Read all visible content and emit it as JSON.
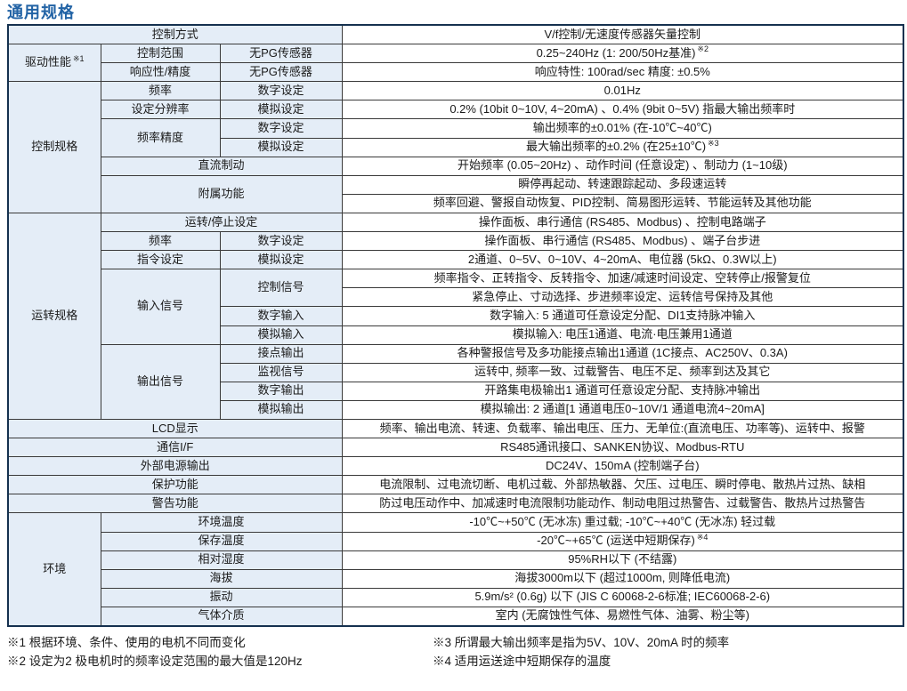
{
  "page_title": "通用规格",
  "colors": {
    "title_blue": "#2263a5",
    "label_cell_bg": "#e4edf7",
    "heavy_border": "#15314f",
    "thin_border": "#3a3a3a"
  },
  "table": {
    "rows": [
      [
        {
          "text": "控制方式",
          "type": "label",
          "colspan": 3
        },
        {
          "text": "V/f控制/无速度传感器矢量控制",
          "type": "value"
        }
      ],
      [
        {
          "text": "驱动性能",
          "sup": "※1",
          "type": "label",
          "rowspan": 2
        },
        {
          "text": "控制范围",
          "type": "label"
        },
        {
          "text": "无PG传感器",
          "type": "label"
        },
        {
          "text": "0.25~240Hz (1: 200/50Hz基准)",
          "sup": "※2",
          "type": "value"
        }
      ],
      [
        {
          "text": "响应性/精度",
          "type": "label"
        },
        {
          "text": "无PG传感器",
          "type": "label"
        },
        {
          "text": "响应特性: 100rad/sec 精度: ±0.5%",
          "type": "value"
        }
      ],
      [
        {
          "text": "控制规格",
          "type": "label",
          "rowspan": 7
        },
        {
          "text": "频率",
          "type": "label"
        },
        {
          "text": "数字设定",
          "type": "label"
        },
        {
          "text": "0.01Hz",
          "type": "value"
        }
      ],
      [
        {
          "text": "设定分辨率",
          "type": "label"
        },
        {
          "text": "模拟设定",
          "type": "label"
        },
        {
          "text": "0.2% (10bit 0~10V, 4~20mA) 、0.4% (9bit 0~5V) 指最大输出频率时",
          "type": "value"
        }
      ],
      [
        {
          "text": "频率精度",
          "type": "label",
          "rowspan": 2
        },
        {
          "text": "数字设定",
          "type": "label"
        },
        {
          "text": "输出频率的±0.01% (在-10℃~40℃)",
          "type": "value"
        }
      ],
      [
        {
          "text": "模拟设定",
          "type": "label"
        },
        {
          "text": "最大输出频率的±0.2% (在25±10℃)",
          "sup": "※3",
          "type": "value"
        }
      ],
      [
        {
          "text": "直流制动",
          "type": "label",
          "colspan": 2
        },
        {
          "text": "开始频率 (0.05~20Hz) 、动作时间 (任意设定) 、制动力 (1~10级)",
          "type": "value"
        }
      ],
      [
        {
          "text": "附属功能",
          "type": "label",
          "colspan": 2,
          "rowspan": 2
        },
        {
          "text": "瞬停再起动、转速跟踪起动、多段速运转",
          "type": "value"
        }
      ],
      [
        {
          "text": "频率回避、警报自动恢复、PID控制、简易图形运转、节能运转及其他功能",
          "type": "value"
        }
      ],
      [
        {
          "text": "运转规格",
          "type": "label",
          "rowspan": 11
        },
        {
          "text": "运转/停止设定",
          "type": "label",
          "colspan": 2
        },
        {
          "text": "操作面板、串行通信 (RS485、Modbus) 、控制电路端子",
          "type": "value"
        }
      ],
      [
        {
          "text": "频率",
          "type": "label"
        },
        {
          "text": "数字设定",
          "type": "label"
        },
        {
          "text": "操作面板、串行通信 (RS485、Modbus) 、端子台步进",
          "type": "value"
        }
      ],
      [
        {
          "text": "指令设定",
          "type": "label"
        },
        {
          "text": "模拟设定",
          "type": "label"
        },
        {
          "text": "2通道、0~5V、0~10V、4~20mA、电位器 (5kΩ、0.3W以上)",
          "type": "value"
        }
      ],
      [
        {
          "text": "输入信号",
          "type": "label",
          "rowspan": 4
        },
        {
          "text": "控制信号",
          "type": "label",
          "rowspan": 2
        },
        {
          "text": "频率指令、正转指令、反转指令、加速/减速时间设定、空转停止/报警复位",
          "type": "value"
        }
      ],
      [
        {
          "text": "紧急停止、寸动选择、步进频率设定、运转信号保持及其他",
          "type": "value"
        }
      ],
      [
        {
          "text": "数字输入",
          "type": "label"
        },
        {
          "text": "数字输入: 5 通道可任意设定分配、DI1支持脉冲输入",
          "type": "value"
        }
      ],
      [
        {
          "text": "模拟输入",
          "type": "label"
        },
        {
          "text": "模拟输入: 电压1通道、电流·电压兼用1通道",
          "type": "value"
        }
      ],
      [
        {
          "text": "输出信号",
          "type": "label",
          "rowspan": 4
        },
        {
          "text": "接点输出",
          "type": "label"
        },
        {
          "text": "各种警报信号及多功能接点输出1通道 (1C接点、AC250V、0.3A)",
          "type": "value"
        }
      ],
      [
        {
          "text": "监视信号",
          "type": "label"
        },
        {
          "text": "运转中, 频率一致、过载警告、电压不足、频率到达及其它",
          "type": "value"
        }
      ],
      [
        {
          "text": "数字输出",
          "type": "label"
        },
        {
          "text": "开路集电极输出1 通道可任意设定分配、支持脉冲输出",
          "type": "value"
        }
      ],
      [
        {
          "text": "模拟输出",
          "type": "label"
        },
        {
          "text": "模拟输出: 2 通道[1 通道电压0~10V/1 通道电流4~20mA]",
          "type": "value"
        }
      ],
      [
        {
          "text": "LCD显示",
          "type": "label",
          "colspan": 3
        },
        {
          "text": "频率、输出电流、转速、负载率、输出电压、压力、无单位:(直流电压、功率等)、运转中、报警",
          "type": "value"
        }
      ],
      [
        {
          "text": "通信I/F",
          "type": "label",
          "colspan": 3
        },
        {
          "text": "RS485通讯接口、SANKEN协议、Modbus-RTU",
          "type": "value"
        }
      ],
      [
        {
          "text": "外部电源输出",
          "type": "label",
          "colspan": 3
        },
        {
          "text": "DC24V、150mA (控制端子台)",
          "type": "value"
        }
      ],
      [
        {
          "text": "保护功能",
          "type": "label",
          "colspan": 3
        },
        {
          "text": "电流限制、过电流切断、电机过载、外部热敏器、欠压、过电压、瞬时停电、散热片过热、缺相",
          "type": "value"
        }
      ],
      [
        {
          "text": "警告功能",
          "type": "label",
          "colspan": 3
        },
        {
          "text": "防过电压动作中、加减速时电流限制功能动作、制动电阻过热警告、过载警告、散热片过热警告",
          "type": "value"
        }
      ],
      [
        {
          "text": "环境",
          "type": "label",
          "rowspan": 6
        },
        {
          "text": "环境温度",
          "type": "label",
          "colspan": 2
        },
        {
          "text": "-10℃~+50℃ (无冰冻) 重过载; -10℃~+40℃ (无冰冻) 轻过载",
          "type": "value"
        }
      ],
      [
        {
          "text": "保存温度",
          "type": "label",
          "colspan": 2
        },
        {
          "text": "-20℃~+65℃ (运送中短期保存)",
          "sup": "※4",
          "type": "value"
        }
      ],
      [
        {
          "text": "相对湿度",
          "type": "label",
          "colspan": 2
        },
        {
          "text": "95%RH以下 (不结露)",
          "type": "value"
        }
      ],
      [
        {
          "text": "海拔",
          "type": "label",
          "colspan": 2
        },
        {
          "text": "海拔3000m以下 (超过1000m, 则降低电流)",
          "type": "value"
        }
      ],
      [
        {
          "text": "振动",
          "type": "label",
          "colspan": 2
        },
        {
          "text": "5.9m/s² (0.6g) 以下 (JIS C 60068-2-6标准; IEC60068-2-6)",
          "type": "value"
        }
      ],
      [
        {
          "text": "气体介质",
          "type": "label",
          "colspan": 2
        },
        {
          "text": "室内 (无腐蚀性气体、易燃性气体、油雾、粉尘等)",
          "type": "value"
        }
      ]
    ]
  },
  "footnotes": {
    "left": [
      "※1  根据环境、条件、使用的电机不同而变化",
      "※2  设定为2 极电机时的频率设定范围的最大值是120Hz"
    ],
    "right": [
      "※3  所谓最大输出频率是指为5V、10V、20mA 时的频率",
      "※4  适用运送途中短期保存的温度"
    ]
  }
}
